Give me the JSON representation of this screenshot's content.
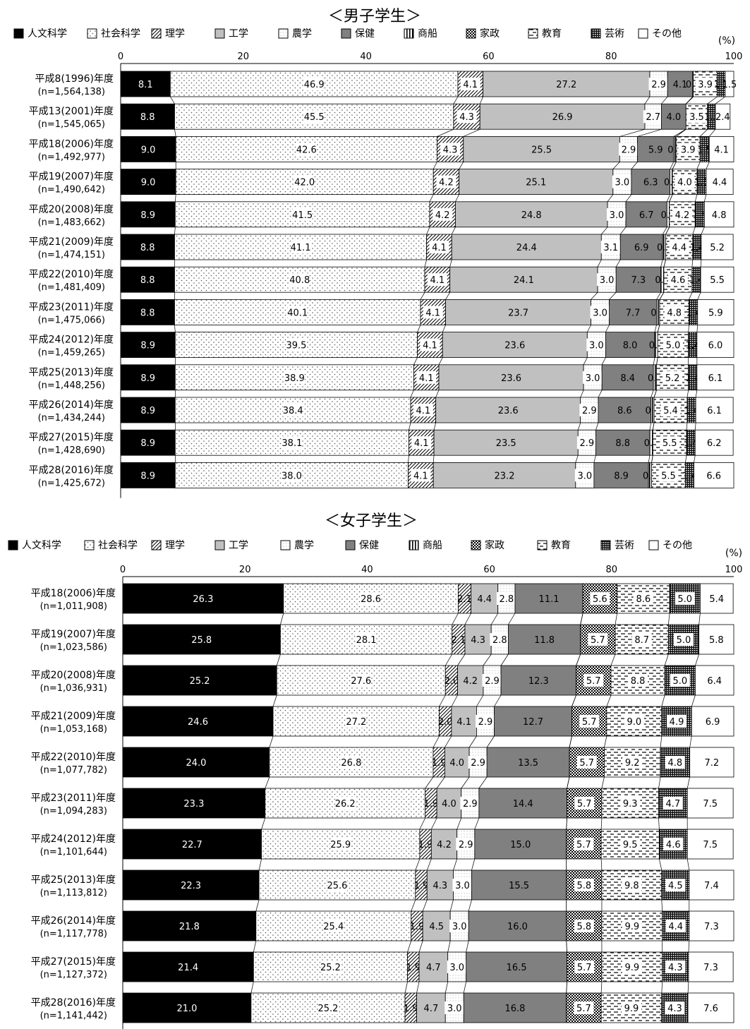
{
  "unit": "(%)",
  "legend": {
    "labels": [
      "人文科学",
      "社会科学",
      "理学",
      "工学",
      "農学",
      "保健",
      "商船",
      "家政",
      "教育",
      "芸術",
      "その他"
    ],
    "icons": [
      "solid-black",
      "sparse-dots",
      "diagonal-hatch",
      "light-gray",
      "dotted-border",
      "dark-gray",
      "vertical-stripes",
      "checkerboard",
      "dashed-lines",
      "dense-checker",
      "blank-white"
    ],
    "colors": [
      "#000000",
      "#ffffff",
      "#ffffff",
      "#c0c0c0",
      "#ffffff",
      "#808080",
      "#ffffff",
      "#ffffff",
      "#ffffff",
      "#1a1a1a",
      "#ffffff"
    ]
  },
  "chart_data": [
    {
      "type": "bar",
      "title": "＜男子学生＞",
      "orientation": "horizontal",
      "stacked": true,
      "xlim": [
        0,
        100
      ],
      "x_ticks": [
        "0",
        "20",
        "40",
        "60",
        "80",
        "100"
      ],
      "categories": [
        [
          "平成8(1996)年度",
          "(n=1,564,138)"
        ],
        [
          "平成13(2001)年度",
          "(n=1,545,065)"
        ],
        [
          "平成18(2006)年度",
          "(n=1,492,977)"
        ],
        [
          "平成19(2007)年度",
          "(n=1,490,642)"
        ],
        [
          "平成20(2008)年度",
          "(n=1,483,662)"
        ],
        [
          "平成21(2009)年度",
          "(n=1,474,151)"
        ],
        [
          "平成22(2010)年度",
          "(n=1,481,409)"
        ],
        [
          "平成23(2011)年度",
          "(n=1,475,066)"
        ],
        [
          "平成24(2012)年度",
          "(n=1,459,265)"
        ],
        [
          "平成25(2013)年度",
          "(n=1,448,256)"
        ],
        [
          "平成26(2014)年度",
          "(n=1,434,244)"
        ],
        [
          "平成27(2015)年度",
          "(n=1,428,690)"
        ],
        [
          "平成28(2016)年度",
          "(n=1,425,672)"
        ]
      ],
      "series": [
        {
          "name": "人文科学",
          "values": [
            8.1,
            8.8,
            9.0,
            9.0,
            8.9,
            8.8,
            8.8,
            8.8,
            8.9,
            8.9,
            8.9,
            8.9,
            8.9
          ]
        },
        {
          "name": "社会科学",
          "values": [
            46.9,
            45.5,
            42.6,
            42.0,
            41.5,
            41.1,
            40.8,
            40.1,
            39.5,
            38.9,
            38.4,
            38.1,
            38.0
          ]
        },
        {
          "name": "理学",
          "values": [
            4.1,
            4.3,
            4.3,
            4.2,
            4.2,
            4.1,
            4.1,
            4.1,
            4.1,
            4.1,
            4.1,
            4.1,
            4.1
          ]
        },
        {
          "name": "工学",
          "values": [
            27.2,
            26.9,
            25.5,
            25.1,
            24.8,
            24.4,
            24.1,
            23.7,
            23.6,
            23.6,
            23.6,
            23.5,
            23.2
          ]
        },
        {
          "name": "農学",
          "values": [
            2.9,
            2.7,
            2.9,
            3.0,
            3.0,
            3.1,
            3.0,
            3.0,
            3.0,
            3.0,
            2.9,
            2.9,
            3.0
          ]
        },
        {
          "name": "保健",
          "values": [
            4.1,
            4.0,
            5.9,
            6.3,
            6.7,
            6.9,
            7.3,
            7.7,
            8.0,
            8.4,
            8.6,
            8.8,
            8.9
          ]
        },
        {
          "name": "商船",
          "values": [
            0.1,
            0.0,
            0.4,
            0.4,
            0.4,
            0.5,
            0.5,
            0.5,
            0.5,
            0.5,
            0.5,
            0.5,
            0.5
          ]
        },
        {
          "name": "家政",
          "values": [
            0.0,
            0.0,
            0.0,
            0.0,
            0.0,
            0.0,
            0.0,
            0.0,
            0.0,
            0.0,
            0.0,
            0.0,
            0.0
          ]
        },
        {
          "name": "教育",
          "values": [
            3.9,
            3.5,
            3.9,
            4.0,
            4.2,
            4.4,
            4.6,
            4.8,
            5.0,
            5.2,
            5.4,
            5.5,
            5.5
          ]
        },
        {
          "name": "芸術",
          "values": [
            1.3,
            1.3,
            1.5,
            1.5,
            1.5,
            1.4,
            1.4,
            1.4,
            1.4,
            1.4,
            1.4,
            1.4,
            1.4
          ]
        },
        {
          "name": "その他",
          "values": [
            1.5,
            2.4,
            4.1,
            4.4,
            4.8,
            5.2,
            5.5,
            5.9,
            6.0,
            6.1,
            6.1,
            6.2,
            6.6
          ]
        }
      ],
      "labels": [
        [
          "8.1",
          "46.9",
          "4.1",
          "27.2",
          "2.9",
          "4.1",
          "0.1",
          "",
          "3.9",
          "1.3",
          "1.5"
        ],
        [
          "8.8",
          "45.5",
          "4.3",
          "26.9",
          "2.7",
          "4.0",
          "0.0",
          "",
          "3.5",
          "1.3",
          "2.4"
        ],
        [
          "9.0",
          "42.6",
          "4.3",
          "25.5",
          "2.9",
          "5.9",
          "0.4",
          "",
          "3.9",
          "1.5",
          "4.1"
        ],
        [
          "9.0",
          "42.0",
          "4.2",
          "25.1",
          "3.0",
          "6.3",
          "0.4",
          "",
          "4.0",
          "1.5",
          "4.4"
        ],
        [
          "8.9",
          "41.5",
          "4.2",
          "24.8",
          "3.0",
          "6.7",
          "0.4",
          "",
          "4.2",
          "1.5",
          "4.8"
        ],
        [
          "8.8",
          "41.1",
          "4.1",
          "24.4",
          "3.1",
          "6.9",
          "0.5",
          "",
          "4.4",
          "1.4",
          "5.2"
        ],
        [
          "8.8",
          "40.8",
          "4.1",
          "24.1",
          "3.0",
          "7.3",
          "0.5",
          "",
          "4.6",
          "1.4",
          "5.5"
        ],
        [
          "8.8",
          "40.1",
          "4.1",
          "23.7",
          "3.0",
          "7.7",
          "0.5",
          "",
          "4.8",
          "1.4",
          "5.9"
        ],
        [
          "8.9",
          "39.5",
          "4.1",
          "23.6",
          "3.0",
          "8.0",
          "0.5",
          "",
          "5.0",
          "1.4",
          "6.0"
        ],
        [
          "8.9",
          "38.9",
          "4.1",
          "23.6",
          "3.0",
          "8.4",
          "0.5",
          "",
          "5.2",
          "1.4",
          "6.1"
        ],
        [
          "8.9",
          "38.4",
          "4.1",
          "23.6",
          "2.9",
          "8.6",
          "0.5",
          "",
          "5.4",
          "1.4",
          "6.1"
        ],
        [
          "8.9",
          "38.1",
          "4.1",
          "23.5",
          "2.9",
          "8.8",
          "0.5",
          "",
          "5.5",
          "1.4",
          "6.2"
        ],
        [
          "8.9",
          "38.0",
          "4.1",
          "23.2",
          "3.0",
          "8.9",
          "0.5",
          "",
          "5.5",
          "1.4",
          "6.6"
        ]
      ]
    },
    {
      "type": "bar",
      "title": "＜女子学生＞",
      "orientation": "horizontal",
      "stacked": true,
      "xlim": [
        0,
        100
      ],
      "x_ticks": [
        "0",
        "20",
        "40",
        "60",
        "80",
        "100"
      ],
      "categories": [
        [
          "平成18(2006)年度",
          "(n=1,011,908)"
        ],
        [
          "平成19(2007)年度",
          "(n=1,023,586)"
        ],
        [
          "平成20(2008)年度",
          "(n=1,036,931)"
        ],
        [
          "平成21(2009)年度",
          "(n=1,053,168)"
        ],
        [
          "平成22(2010)年度",
          "(n=1,077,782)"
        ],
        [
          "平成23(2011)年度",
          "(n=1,094,283)"
        ],
        [
          "平成24(2012)年度",
          "(n=1,101,644)"
        ],
        [
          "平成25(2013)年度",
          "(n=1,113,812)"
        ],
        [
          "平成26(2014)年度",
          "(n=1,117,778)"
        ],
        [
          "平成27(2015)年度",
          "(n=1,127,372)"
        ],
        [
          "平成28(2016)年度",
          "(n=1,141,442)"
        ]
      ],
      "series": [
        {
          "name": "人文科学",
          "values": [
            26.3,
            25.8,
            25.2,
            24.6,
            24.0,
            23.3,
            22.7,
            22.3,
            21.8,
            21.4,
            21.0
          ]
        },
        {
          "name": "社会科学",
          "values": [
            28.6,
            28.1,
            27.6,
            27.2,
            26.8,
            26.2,
            25.9,
            25.6,
            25.4,
            25.2,
            25.2
          ]
        },
        {
          "name": "理学",
          "values": [
            2.1,
            2.1,
            2.0,
            2.0,
            1.9,
            1.9,
            1.9,
            1.9,
            1.9,
            1.9,
            1.9
          ]
        },
        {
          "name": "工学",
          "values": [
            4.4,
            4.3,
            4.2,
            4.1,
            4.0,
            4.0,
            4.2,
            4.3,
            4.5,
            4.7,
            4.7
          ]
        },
        {
          "name": "農学",
          "values": [
            2.8,
            2.8,
            2.9,
            2.9,
            2.9,
            2.9,
            2.9,
            3.0,
            3.0,
            3.0,
            3.0
          ]
        },
        {
          "name": "保健",
          "values": [
            11.1,
            11.8,
            12.3,
            12.7,
            13.5,
            14.4,
            15.0,
            15.5,
            16.0,
            16.5,
            16.8
          ]
        },
        {
          "name": "商船",
          "values": [
            0,
            0,
            0,
            0,
            0,
            0,
            0,
            0,
            0,
            0,
            0
          ]
        },
        {
          "name": "家政",
          "values": [
            5.6,
            5.7,
            5.7,
            5.7,
            5.7,
            5.7,
            5.7,
            5.8,
            5.8,
            5.7,
            5.7
          ]
        },
        {
          "name": "教育",
          "values": [
            8.6,
            8.7,
            8.8,
            9.0,
            9.2,
            9.3,
            9.5,
            9.8,
            9.9,
            9.9,
            9.9
          ]
        },
        {
          "name": "芸術",
          "values": [
            5.0,
            5.0,
            5.0,
            4.9,
            4.8,
            4.7,
            4.6,
            4.5,
            4.4,
            4.3,
            4.3
          ]
        },
        {
          "name": "その他",
          "values": [
            5.4,
            5.8,
            6.4,
            6.9,
            7.2,
            7.5,
            7.5,
            7.4,
            7.3,
            7.3,
            7.6
          ]
        }
      ],
      "labels": [
        [
          "26.3",
          "28.6",
          "2.1",
          "4.4",
          "2.8",
          "11.1",
          "",
          "5.6",
          "8.6",
          "5.0",
          "5.4"
        ],
        [
          "25.8",
          "28.1",
          "2.1",
          "4.3",
          "2.8",
          "11.8",
          "",
          "5.7",
          "8.7",
          "5.0",
          "5.8"
        ],
        [
          "25.2",
          "27.6",
          "2.0",
          "4.2",
          "2.9",
          "12.3",
          "",
          "5.7",
          "8.8",
          "5.0",
          "6.4"
        ],
        [
          "24.6",
          "27.2",
          "2.0",
          "4.1",
          "2.9",
          "12.7",
          "",
          "5.7",
          "9.0",
          "4.9",
          "6.9"
        ],
        [
          "24.0",
          "26.8",
          "1.9",
          "4.0",
          "2.9",
          "13.5",
          "",
          "5.7",
          "9.2",
          "4.8",
          "7.2"
        ],
        [
          "23.3",
          "26.2",
          "1.9",
          "4.0",
          "2.9",
          "14.4",
          "",
          "5.7",
          "9.3",
          "4.7",
          "7.5"
        ],
        [
          "22.7",
          "25.9",
          "1.9",
          "4.2",
          "2.9",
          "15.0",
          "",
          "5.7",
          "9.5",
          "4.6",
          "7.5"
        ],
        [
          "22.3",
          "25.6",
          "1.9",
          "4.3",
          "3.0",
          "15.5",
          "",
          "5.8",
          "9.8",
          "4.5",
          "7.4"
        ],
        [
          "21.8",
          "25.4",
          "1.9",
          "4.5",
          "3.0",
          "16.0",
          "",
          "5.8",
          "9.9",
          "4.4",
          "7.3"
        ],
        [
          "21.4",
          "25.2",
          "1.9",
          "4.7",
          "3.0",
          "16.5",
          "",
          "5.7",
          "9.9",
          "4.3",
          "7.3"
        ],
        [
          "21.0",
          "25.2",
          "1.9",
          "4.7",
          "3.0",
          "16.8",
          "",
          "5.7",
          "9.9",
          "4.3",
          "7.6"
        ]
      ]
    }
  ]
}
